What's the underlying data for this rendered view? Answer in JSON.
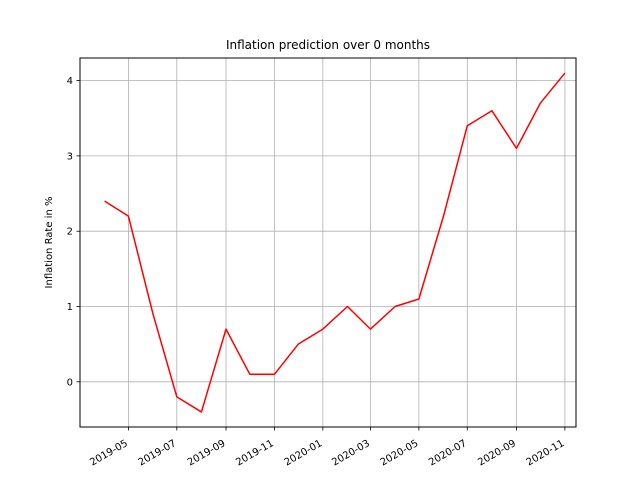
{
  "chart_data": {
    "type": "line",
    "title": "Inflation prediction over 0 months",
    "xlabel": "",
    "ylabel": "Inflation Rate in %",
    "grid": true,
    "ylim": [
      -0.6,
      4.3
    ],
    "xlim": [
      "2019-03-01",
      "2020-11-15"
    ],
    "yticks": [
      0,
      1,
      2,
      3,
      4
    ],
    "xticks": [
      {
        "date": "2019-05-01",
        "label": "2019-05"
      },
      {
        "date": "2019-07-01",
        "label": "2019-07"
      },
      {
        "date": "2019-09-01",
        "label": "2019-09"
      },
      {
        "date": "2019-11-01",
        "label": "2019-11"
      },
      {
        "date": "2020-01-01",
        "label": "2020-01"
      },
      {
        "date": "2020-03-01",
        "label": "2020-03"
      },
      {
        "date": "2020-05-01",
        "label": "2020-05"
      },
      {
        "date": "2020-07-01",
        "label": "2020-07"
      },
      {
        "date": "2020-09-01",
        "label": "2020-09"
      },
      {
        "date": "2020-11-01",
        "label": "2020-11"
      }
    ],
    "series": [
      {
        "color": "#ff0000",
        "x": [
          "2019-04-01",
          "2019-05-01",
          "2019-06-01",
          "2019-07-01",
          "2019-08-01",
          "2019-09-01",
          "2019-10-01",
          "2019-11-01",
          "2019-12-01",
          "2020-01-01",
          "2020-02-01",
          "2020-03-01",
          "2020-04-01",
          "2020-05-01",
          "2020-06-01",
          "2020-07-01",
          "2020-08-01",
          "2020-09-01",
          "2020-10-01",
          "2020-11-01"
        ],
        "y": [
          2.4,
          2.2,
          0.9,
          -0.2,
          -0.4,
          0.7,
          0.1,
          0.1,
          0.5,
          0.7,
          1.0,
          0.7,
          1.0,
          1.1,
          2.2,
          3.4,
          3.6,
          3.1,
          3.7,
          4.1
        ]
      }
    ]
  }
}
